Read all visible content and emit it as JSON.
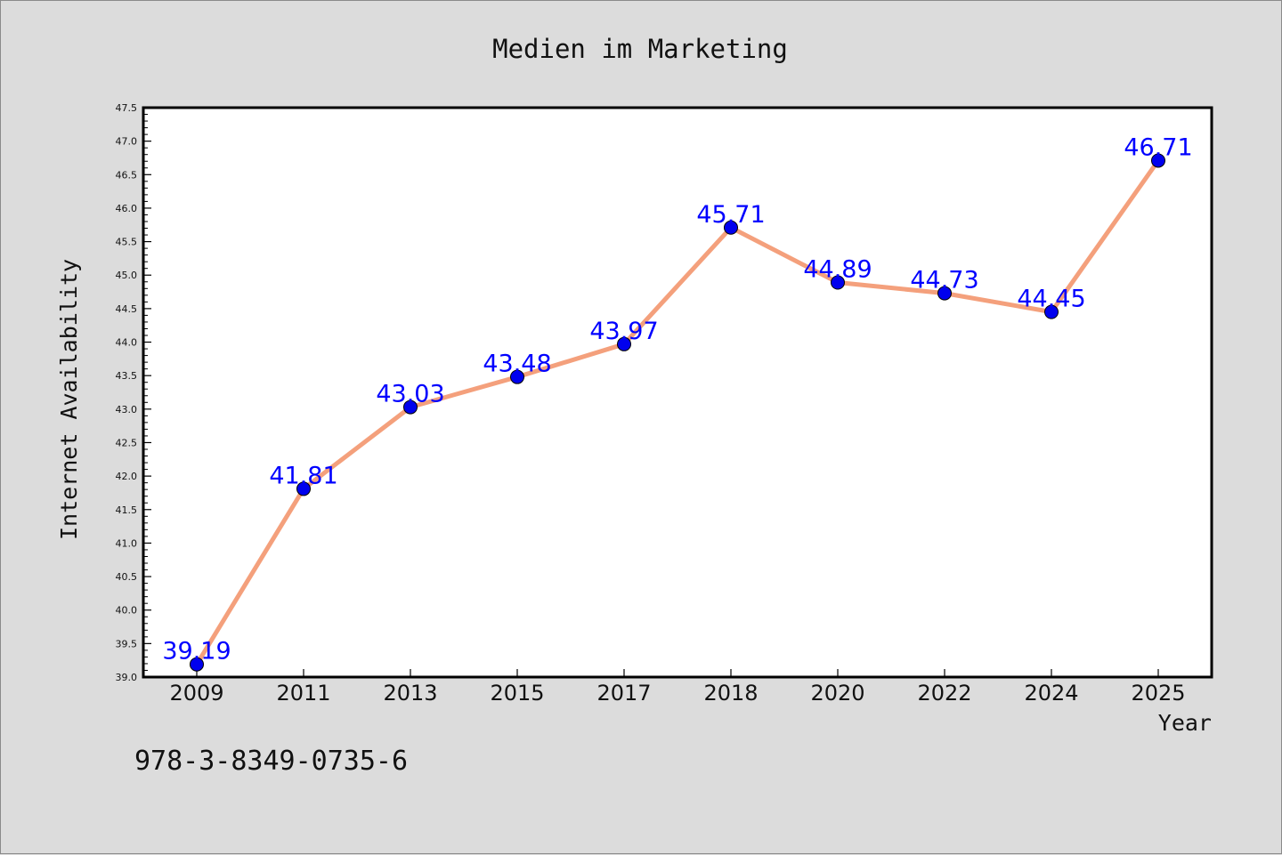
{
  "chart_data": {
    "type": "line",
    "title": "Medien im Marketing",
    "xlabel": "Year",
    "ylabel": "Internet Availability",
    "categories": [
      "2009",
      "2011",
      "2013",
      "2015",
      "2017",
      "2018",
      "2020",
      "2022",
      "2024",
      "2025"
    ],
    "series": [
      {
        "values": [
          39.19,
          41.81,
          43.03,
          43.48,
          43.97,
          45.71,
          44.89,
          44.73,
          44.45,
          46.71
        ],
        "labels": [
          "39.19",
          "41.81",
          "43.03",
          "43.48",
          "43.97",
          "45.71",
          "44.89",
          "44.73",
          "44.45",
          "46.71"
        ],
        "line_color": "#f4a07c",
        "marker_color": "#0000ee"
      }
    ],
    "ylim": [
      39.0,
      47.5
    ],
    "yticks": [
      "39.0",
      "39.5",
      "40.0",
      "40.5",
      "41.0",
      "41.5",
      "42.0",
      "42.5",
      "43.0",
      "43.5",
      "44.0",
      "44.5",
      "45.0",
      "45.5",
      "46.0",
      "46.5",
      "47.0",
      "47.5"
    ],
    "grid": false,
    "legend": "none"
  },
  "footer": {
    "isbn": "978-3-8349-0735-6"
  },
  "colors": {
    "background": "#dcdcdc",
    "plot_background": "#ffffff",
    "line": "#f4a07c",
    "marker": "#0000ee",
    "data_label": "#0000ff"
  }
}
